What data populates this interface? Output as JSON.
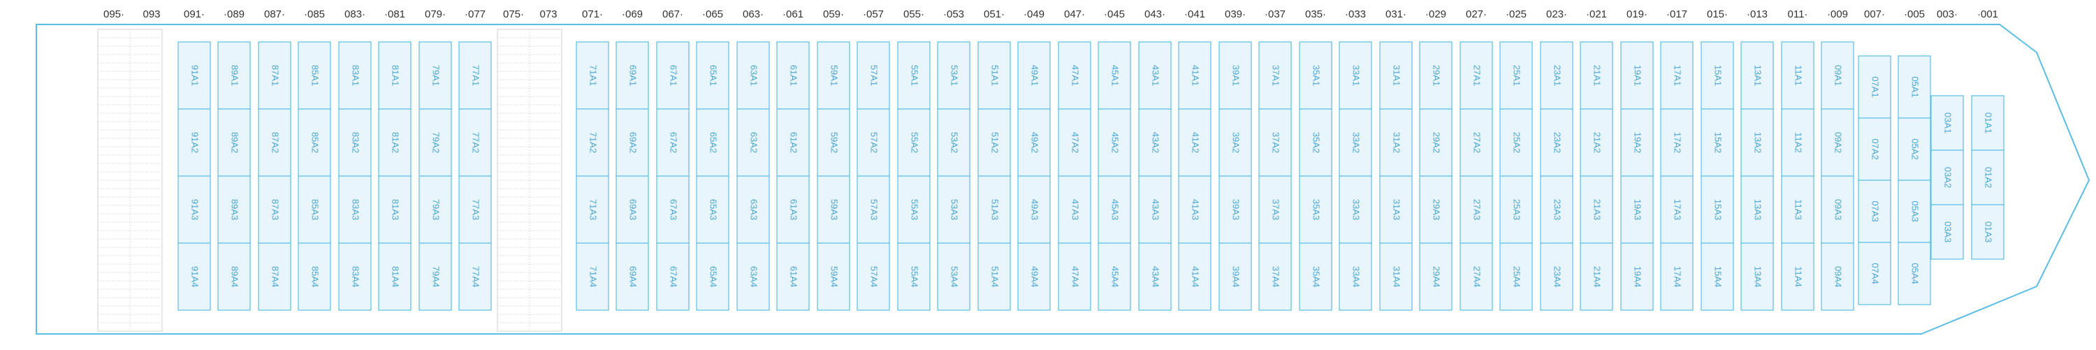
{
  "colors": {
    "hull": "#5bbde6",
    "cell_fill": "#e8f5fc",
    "cell_stroke": "#5bbde6",
    "label": "#4aa6d6",
    "empty_stroke": "#d0d0d0",
    "empty_grid": "#dedede",
    "text": "#333333"
  },
  "bay_numbers": [
    "095·",
    "093",
    "091·",
    "·089",
    "087·",
    "·085",
    "083·",
    "·081",
    "079·",
    "·077",
    "075·",
    "073",
    "071·",
    "·069",
    "067·",
    "·065",
    "063·",
    "·061",
    "059·",
    "·057",
    "055·",
    "·053",
    "051·",
    "·049",
    "047·",
    "·045",
    "043·",
    "·041",
    "039·",
    "·037",
    "035·",
    "·033",
    "031·",
    "·029",
    "027·",
    "·025",
    "023·",
    "·021",
    "019·",
    "·017",
    "015·",
    "·013",
    "011·",
    "·009",
    "007·",
    "·005",
    "003·",
    "·001"
  ],
  "empty_bays": [
    "95",
    "75"
  ],
  "slot_rows": [
    "A1",
    "A2",
    "A3",
    "A4"
  ],
  "bays": [
    "91",
    "89",
    "87",
    "85",
    "83",
    "81",
    "79",
    "77",
    "71",
    "69",
    "67",
    "65",
    "63",
    "61",
    "59",
    "57",
    "55",
    "53",
    "51",
    "49",
    "47",
    "45",
    "43",
    "41",
    "39",
    "37",
    "35",
    "33",
    "31",
    "29",
    "27",
    "25",
    "23",
    "21",
    "19",
    "17",
    "15",
    "13",
    "11",
    "09",
    "07",
    "05",
    "03",
    "01"
  ]
}
